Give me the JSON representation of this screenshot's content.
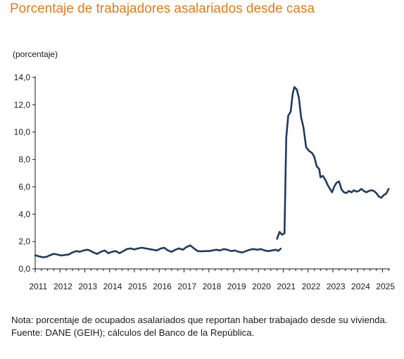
{
  "title": "Porcentaje de trabajadores asalariados desde casa",
  "unit_label": "(porcentaje)",
  "note": "Nota: porcentaje de ocupados asalariados que reportan haber trabajado desde su vivienda.",
  "source": "Fuente: DANE (GEIH); cálculos del Banco de la República.",
  "colors": {
    "title": "#e07b1a",
    "line": "#1f3a5f",
    "axis": "#1a1a1a"
  },
  "chart_data": {
    "type": "line",
    "title": "Porcentaje de trabajadores asalariados desde casa",
    "ylabel": "(porcentaje)",
    "xlabel": "",
    "ylim": [
      0,
      14
    ],
    "xlim": [
      2011,
      2025.3
    ],
    "y_ticks": [
      "0,0",
      "2,0",
      "4,0",
      "6,0",
      "8,0",
      "10,0",
      "12,0",
      "14,0"
    ],
    "y_tick_values": [
      0,
      2,
      4,
      6,
      8,
      10,
      12,
      14
    ],
    "x_ticks": [
      "2011",
      "2012",
      "2013",
      "2014",
      "2015",
      "2016",
      "2017",
      "2018",
      "2019",
      "2020",
      "2021",
      "2022",
      "2023",
      "2024",
      "2025"
    ],
    "grid": false,
    "series": [
      {
        "segments": [
          [
            [
              2011.0,
              1.0
            ],
            [
              2011.15,
              0.92
            ],
            [
              2011.3,
              0.85
            ],
            [
              2011.45,
              0.88
            ],
            [
              2011.6,
              1.0
            ],
            [
              2011.75,
              1.1
            ],
            [
              2011.9,
              1.05
            ],
            [
              2012.05,
              0.98
            ],
            [
              2012.2,
              1.02
            ],
            [
              2012.35,
              1.05
            ],
            [
              2012.5,
              1.2
            ],
            [
              2012.65,
              1.3
            ],
            [
              2012.8,
              1.25
            ],
            [
              2012.95,
              1.35
            ],
            [
              2013.1,
              1.4
            ],
            [
              2013.2,
              1.35
            ],
            [
              2013.35,
              1.2
            ],
            [
              2013.5,
              1.1
            ],
            [
              2013.65,
              1.25
            ],
            [
              2013.8,
              1.35
            ],
            [
              2013.95,
              1.15
            ],
            [
              2014.1,
              1.25
            ],
            [
              2014.25,
              1.3
            ],
            [
              2014.4,
              1.15
            ],
            [
              2014.55,
              1.3
            ],
            [
              2014.7,
              1.45
            ],
            [
              2014.85,
              1.5
            ],
            [
              2015.0,
              1.42
            ],
            [
              2015.15,
              1.5
            ],
            [
              2015.3,
              1.55
            ],
            [
              2015.45,
              1.5
            ],
            [
              2015.6,
              1.45
            ],
            [
              2015.75,
              1.4
            ],
            [
              2015.9,
              1.35
            ],
            [
              2016.05,
              1.48
            ],
            [
              2016.2,
              1.55
            ],
            [
              2016.35,
              1.35
            ],
            [
              2016.5,
              1.25
            ],
            [
              2016.65,
              1.4
            ],
            [
              2016.8,
              1.5
            ],
            [
              2016.95,
              1.4
            ],
            [
              2017.1,
              1.6
            ],
            [
              2017.25,
              1.72
            ],
            [
              2017.4,
              1.5
            ],
            [
              2017.55,
              1.3
            ],
            [
              2017.7,
              1.28
            ],
            [
              2017.85,
              1.3
            ],
            [
              2018.0,
              1.3
            ],
            [
              2018.15,
              1.35
            ],
            [
              2018.3,
              1.4
            ],
            [
              2018.45,
              1.35
            ],
            [
              2018.6,
              1.45
            ],
            [
              2018.75,
              1.4
            ],
            [
              2018.9,
              1.3
            ],
            [
              2019.05,
              1.35
            ],
            [
              2019.2,
              1.25
            ],
            [
              2019.35,
              1.2
            ],
            [
              2019.5,
              1.3
            ],
            [
              2019.65,
              1.4
            ],
            [
              2019.8,
              1.45
            ],
            [
              2019.95,
              1.4
            ],
            [
              2020.1,
              1.45
            ],
            [
              2020.25,
              1.35
            ],
            [
              2020.4,
              1.3
            ],
            [
              2020.55,
              1.35
            ],
            [
              2020.7,
              1.4
            ],
            [
              2020.8,
              1.32
            ],
            [
              2020.9,
              1.48
            ]
          ],
          [
            [
              2020.75,
              2.2
            ],
            [
              2020.85,
              2.7
            ],
            [
              2020.95,
              2.5
            ],
            [
              2021.05,
              2.6
            ],
            [
              2021.12,
              9.6
            ],
            [
              2021.2,
              11.2
            ],
            [
              2021.3,
              11.5
            ],
            [
              2021.38,
              12.8
            ],
            [
              2021.45,
              13.3
            ],
            [
              2021.55,
              13.1
            ],
            [
              2021.63,
              12.5
            ],
            [
              2021.72,
              11.1
            ],
            [
              2021.82,
              10.3
            ],
            [
              2021.92,
              8.9
            ],
            [
              2022.05,
              8.6
            ],
            [
              2022.15,
              8.5
            ],
            [
              2022.25,
              8.2
            ],
            [
              2022.35,
              7.5
            ],
            [
              2022.45,
              7.3
            ],
            [
              2022.5,
              6.7
            ],
            [
              2022.6,
              6.8
            ],
            [
              2022.7,
              6.5
            ],
            [
              2022.8,
              6.1
            ],
            [
              2022.9,
              5.8
            ],
            [
              2022.97,
              5.6
            ],
            [
              2023.05,
              6.0
            ],
            [
              2023.15,
              6.3
            ],
            [
              2023.25,
              6.4
            ],
            [
              2023.35,
              5.8
            ],
            [
              2023.45,
              5.6
            ],
            [
              2023.55,
              5.55
            ],
            [
              2023.65,
              5.7
            ],
            [
              2023.75,
              5.6
            ],
            [
              2023.85,
              5.75
            ],
            [
              2023.95,
              5.65
            ],
            [
              2024.05,
              5.7
            ],
            [
              2024.15,
              5.85
            ],
            [
              2024.25,
              5.7
            ],
            [
              2024.35,
              5.6
            ],
            [
              2024.45,
              5.7
            ],
            [
              2024.55,
              5.75
            ],
            [
              2024.65,
              5.7
            ],
            [
              2024.75,
              5.55
            ],
            [
              2024.85,
              5.3
            ],
            [
              2024.95,
              5.2
            ],
            [
              2025.05,
              5.4
            ],
            [
              2025.15,
              5.5
            ],
            [
              2025.25,
              5.85
            ]
          ]
        ]
      }
    ]
  }
}
